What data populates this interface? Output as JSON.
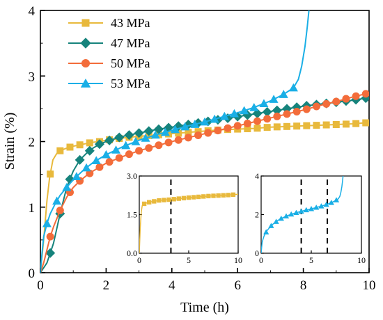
{
  "chart_data": [
    {
      "type": "line",
      "xlabel": "Time (h)",
      "ylabel": "Strain (%)",
      "xlim": [
        0,
        10
      ],
      "ylim": [
        0,
        4
      ],
      "xticks": [
        "0",
        "2",
        "4",
        "6",
        "8",
        "10"
      ],
      "yticks": [
        "0",
        "1",
        "2",
        "3",
        "4"
      ],
      "grid": false,
      "legend_position": "top-left",
      "series": [
        {
          "name": "43 MPa",
          "color": "#E8B93C",
          "marker": "square",
          "x": [
            0,
            0.1,
            0.2,
            0.28,
            0.38,
            0.5,
            0.6,
            0.8,
            1.0,
            1.2,
            1.4,
            1.6,
            1.8,
            2.0,
            2.3,
            2.6,
            3.0,
            3.5,
            4.0,
            4.5,
            5.0,
            5.5,
            6.0,
            6.5,
            7.0,
            7.5,
            8.0,
            8.5,
            9.0,
            9.5,
            10.0
          ],
          "y": [
            0,
            0.5,
            1.1,
            1.45,
            1.72,
            1.82,
            1.86,
            1.9,
            1.93,
            1.95,
            1.97,
            1.99,
            2.0,
            2.02,
            2.04,
            2.06,
            2.08,
            2.1,
            2.12,
            2.14,
            2.16,
            2.18,
            2.19,
            2.2,
            2.22,
            2.23,
            2.24,
            2.25,
            2.26,
            2.27,
            2.29
          ],
          "marker_x": [
            0.3,
            0.6,
            0.9,
            1.2,
            1.5,
            1.8,
            2.1,
            2.4,
            2.7,
            3.0,
            3.3,
            3.6,
            3.9,
            4.2,
            4.5,
            4.8,
            5.1,
            5.4,
            5.7,
            6.0,
            6.3,
            6.6,
            6.9,
            7.2,
            7.5,
            7.8,
            8.1,
            8.4,
            8.7,
            9.0,
            9.3,
            9.6,
            9.9
          ]
        },
        {
          "name": "47 MPa",
          "color": "#16837C",
          "marker": "diamond",
          "x": [
            0,
            0.2,
            0.4,
            0.6,
            0.8,
            1.0,
            1.2,
            1.4,
            1.6,
            1.8,
            2.0,
            2.3,
            2.6,
            3.0,
            3.5,
            4.0,
            4.5,
            5.0,
            5.5,
            6.0,
            6.5,
            7.0,
            7.5,
            8.0,
            8.5,
            9.0,
            9.5,
            10.0
          ],
          "y": [
            0,
            0.15,
            0.45,
            0.9,
            1.3,
            1.55,
            1.72,
            1.82,
            1.9,
            1.96,
            2.0,
            2.05,
            2.09,
            2.13,
            2.18,
            2.22,
            2.26,
            2.3,
            2.34,
            2.38,
            2.42,
            2.46,
            2.5,
            2.54,
            2.57,
            2.6,
            2.63,
            2.67
          ],
          "marker_x": [
            0.3,
            0.6,
            0.9,
            1.2,
            1.5,
            1.8,
            2.1,
            2.4,
            2.7,
            3.0,
            3.3,
            3.6,
            3.9,
            4.2,
            4.5,
            4.8,
            5.1,
            5.4,
            5.7,
            6.0,
            6.3,
            6.6,
            6.9,
            7.2,
            7.5,
            7.8,
            8.1,
            8.4,
            8.7,
            9.0,
            9.3,
            9.6,
            9.9
          ]
        },
        {
          "name": "50 MPa",
          "color": "#F36C3A",
          "marker": "circle",
          "x": [
            0,
            0.1,
            0.2,
            0.3,
            0.4,
            0.6,
            0.8,
            1.0,
            1.2,
            1.4,
            1.6,
            1.8,
            2.0,
            2.3,
            2.6,
            3.0,
            3.5,
            4.0,
            4.5,
            5.0,
            5.5,
            6.0,
            6.5,
            7.0,
            7.5,
            8.0,
            8.5,
            9.0,
            9.5,
            10.0
          ],
          "y": [
            0,
            0.15,
            0.35,
            0.55,
            0.7,
            0.95,
            1.15,
            1.3,
            1.4,
            1.48,
            1.55,
            1.61,
            1.67,
            1.73,
            1.79,
            1.86,
            1.93,
            2.0,
            2.06,
            2.12,
            2.18,
            2.24,
            2.3,
            2.36,
            2.42,
            2.48,
            2.55,
            2.61,
            2.68,
            2.74
          ],
          "marker_x": [
            0.3,
            0.6,
            0.9,
            1.2,
            1.5,
            1.8,
            2.1,
            2.4,
            2.7,
            3.0,
            3.3,
            3.6,
            3.9,
            4.2,
            4.5,
            4.8,
            5.1,
            5.4,
            5.7,
            6.0,
            6.3,
            6.6,
            6.9,
            7.2,
            7.5,
            7.8,
            8.1,
            8.4,
            8.7,
            9.0,
            9.3,
            9.6,
            9.9
          ]
        },
        {
          "name": "53 MPa",
          "color": "#1AAFE6",
          "marker": "triangle",
          "x": [
            0,
            0.05,
            0.1,
            0.2,
            0.3,
            0.45,
            0.6,
            0.8,
            1.0,
            1.3,
            1.6,
            2.0,
            2.5,
            3.0,
            3.5,
            4.0,
            4.5,
            5.0,
            5.5,
            6.0,
            6.5,
            7.0,
            7.4,
            7.7,
            7.85,
            7.95,
            8.05,
            8.12,
            8.18
          ],
          "y": [
            0,
            0.3,
            0.55,
            0.75,
            0.9,
            1.05,
            1.18,
            1.3,
            1.42,
            1.56,
            1.68,
            1.8,
            1.92,
            2.02,
            2.1,
            2.17,
            2.24,
            2.3,
            2.37,
            2.44,
            2.52,
            2.62,
            2.72,
            2.82,
            2.95,
            3.15,
            3.45,
            3.75,
            4.05
          ],
          "marker_x": [
            0.2,
            0.5,
            0.8,
            1.1,
            1.4,
            1.7,
            2.0,
            2.3,
            2.6,
            2.9,
            3.2,
            3.5,
            3.8,
            4.1,
            4.4,
            4.7,
            5.0,
            5.3,
            5.6,
            5.9,
            6.2,
            6.5,
            6.8,
            7.1,
            7.4,
            7.7
          ]
        }
      ]
    },
    {
      "type": "line",
      "xlim": [
        0,
        10
      ],
      "ylim": [
        0,
        3.0
      ],
      "xticks": [
        "0",
        "5",
        "10"
      ],
      "yticks": [
        "0.0",
        "1.5",
        "3.0"
      ],
      "vlines": [
        3.2
      ],
      "series": [
        {
          "color": "#E8B93C",
          "marker": "square",
          "x": [
            0,
            0.1,
            0.2,
            0.3,
            0.5,
            0.8,
            1.2,
            1.6,
            2.0,
            3.0,
            4.0,
            5.0,
            6.0,
            7.0,
            8.0,
            9.0,
            10.0
          ],
          "y": [
            0,
            1.0,
            1.6,
            1.85,
            1.92,
            1.96,
            2.0,
            2.02,
            2.05,
            2.08,
            2.12,
            2.16,
            2.19,
            2.22,
            2.24,
            2.26,
            2.29
          ],
          "marker_x": [
            0.5,
            1.0,
            1.5,
            2.0,
            2.5,
            3.0,
            3.5,
            4.0,
            4.5,
            5.0,
            5.5,
            6.0,
            6.5,
            7.0,
            7.5,
            8.0,
            8.5,
            9.0,
            9.5
          ]
        }
      ]
    },
    {
      "type": "line",
      "xlim": [
        0,
        10
      ],
      "ylim": [
        0,
        4
      ],
      "xticks": [
        "0",
        "5",
        "10"
      ],
      "yticks": [
        "0",
        "2",
        "4"
      ],
      "vlines": [
        4.0,
        6.6
      ],
      "series": [
        {
          "color": "#1AAFE6",
          "marker": "triangle",
          "x": [
            0,
            0.05,
            0.1,
            0.2,
            0.3,
            0.45,
            0.6,
            0.8,
            1.0,
            1.3,
            1.6,
            2.0,
            2.5,
            3.0,
            3.5,
            4.0,
            4.5,
            5.0,
            5.5,
            6.0,
            6.5,
            7.0,
            7.4,
            7.7,
            7.85,
            7.95,
            8.05,
            8.12,
            8.18
          ],
          "y": [
            0,
            0.3,
            0.55,
            0.75,
            0.9,
            1.05,
            1.18,
            1.3,
            1.42,
            1.56,
            1.68,
            1.8,
            1.92,
            2.02,
            2.1,
            2.17,
            2.24,
            2.3,
            2.37,
            2.44,
            2.52,
            2.62,
            2.72,
            2.82,
            2.95,
            3.15,
            3.45,
            3.75,
            4.05
          ],
          "marker_x": [
            0.5,
            1.0,
            1.5,
            2.0,
            2.5,
            3.0,
            3.5,
            4.0,
            4.5,
            5.0,
            5.5,
            6.0,
            6.5,
            7.0,
            7.5
          ]
        }
      ]
    }
  ]
}
